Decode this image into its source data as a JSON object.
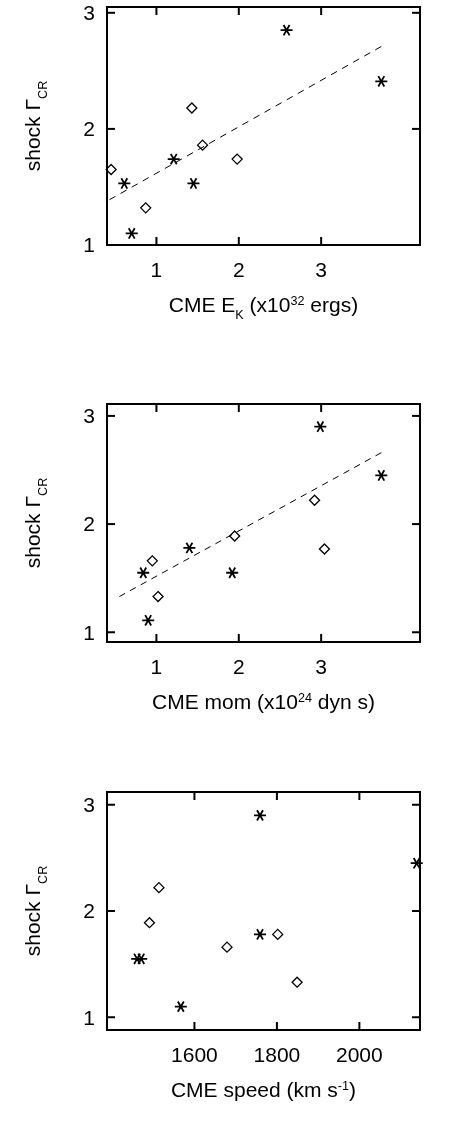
{
  "chart_data": [
    {
      "type": "scatter",
      "xlabel": "CME E$_{K}$ (x10$^{32}$ ergs)",
      "ylabel": "shock Γ$_{CR}$",
      "xlim": [
        0.4,
        4.2
      ],
      "xticks": [
        1,
        2,
        3
      ],
      "ylim": [
        1,
        3.05
      ],
      "yticks": [
        1,
        2,
        3
      ],
      "grid": false,
      "series": [
        {
          "color": "#000000",
          "marker": "diamond",
          "x": [
            0.45,
            0.87,
            1.43,
            1.56,
            1.98
          ],
          "values": [
            1.65,
            1.32,
            2.18,
            1.86,
            1.74
          ]
        },
        {
          "color": "#000000",
          "marker": "cross",
          "x": [
            0.61,
            0.7,
            1.21,
            1.45,
            2.58,
            3.73
          ],
          "values": [
            1.53,
            1.1,
            1.74,
            1.53,
            2.85,
            2.41
          ]
        },
        {
          "type": "line",
          "color": "#000000",
          "marker": "none",
          "line_style": "dashed",
          "x": [
            0.43,
            3.73
          ],
          "values": [
            1.39,
            2.71
          ]
        }
      ]
    },
    {
      "type": "scatter",
      "xlabel": "CME mom (x10$^{24}$ dyn s)",
      "ylabel": "shock Γ$_{CR}$",
      "xlim": [
        0.4,
        4.2
      ],
      "xticks": [
        1,
        2,
        3
      ],
      "ylim": [
        0.91,
        3.11
      ],
      "yticks": [
        1,
        2,
        3
      ],
      "grid": false,
      "series": [
        {
          "color": "#000000",
          "marker": "diamond",
          "x": [
            0.95,
            1.02,
            1.95,
            2.92,
            3.04
          ],
          "values": [
            1.66,
            1.33,
            1.89,
            2.22,
            1.77
          ]
        },
        {
          "color": "#000000",
          "marker": "cross",
          "x": [
            0.84,
            0.9,
            1.4,
            1.92,
            2.99,
            3.73
          ],
          "values": [
            1.55,
            1.11,
            1.78,
            1.55,
            2.9,
            2.45
          ]
        },
        {
          "type": "line",
          "color": "#000000",
          "marker": "none",
          "line_style": "dashed",
          "x": [
            0.55,
            3.73
          ],
          "values": [
            1.33,
            2.66
          ]
        }
      ]
    },
    {
      "type": "scatter",
      "xlabel": "CME speed (km s$^{-1}$)",
      "ylabel": "shock Γ$_{CR}$",
      "xlim": [
        1388,
        2147
      ],
      "xticks": [
        1600,
        1800,
        2000
      ],
      "ylim": [
        0.88,
        3.12
      ],
      "yticks": [
        1,
        2,
        3
      ],
      "grid": false,
      "series": [
        {
          "color": "#000000",
          "marker": "diamond",
          "x": [
            1514,
            1491,
            1679,
            1802,
            1849
          ],
          "values": [
            2.22,
            1.89,
            1.66,
            1.78,
            1.33
          ]
        },
        {
          "color": "#000000",
          "marker": "cross",
          "x": [
            1461,
            1471,
            1567,
            1759,
            1759,
            2139
          ],
          "values": [
            1.55,
            1.55,
            1.1,
            2.9,
            1.78,
            2.45
          ]
        }
      ]
    }
  ]
}
